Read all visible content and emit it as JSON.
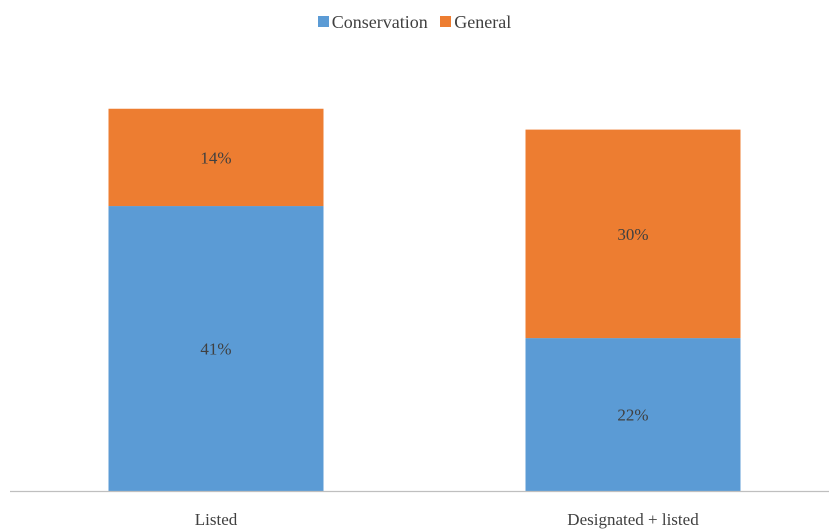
{
  "chart_data": {
    "type": "bar",
    "stacked": true,
    "categories": [
      "Listed",
      "Designated + listed"
    ],
    "series": [
      {
        "name": "Conservation",
        "values": [
          41,
          22
        ],
        "labels": [
          "41%",
          "22%"
        ],
        "color": "#5B9BD5"
      },
      {
        "name": "General",
        "values": [
          14,
          30
        ],
        "labels": [
          "14%",
          "30%"
        ],
        "color": "#ED7D31"
      }
    ],
    "ylim": [
      0,
      60
    ],
    "grid": false,
    "legend_position": "top-center",
    "y_axis_visible": false
  }
}
